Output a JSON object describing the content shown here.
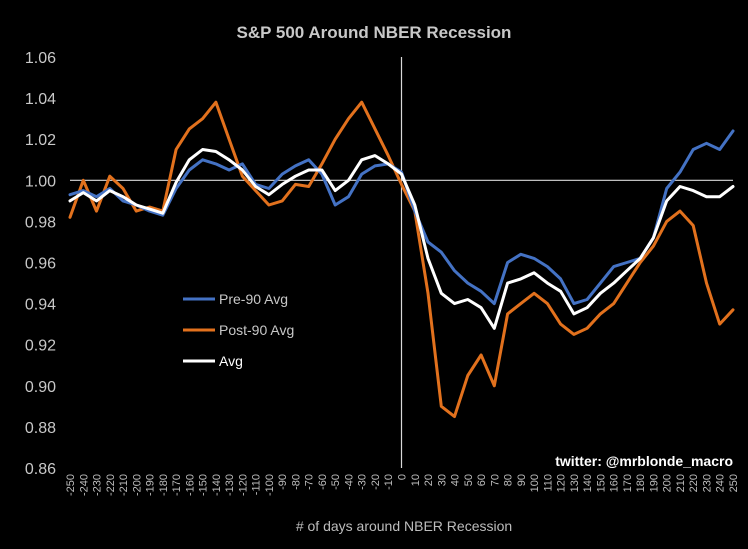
{
  "chart_data": {
    "type": "line",
    "title": "S&P 500 Around NBER Recession",
    "xlabel": "# of days around NBER Recession",
    "ylabel": "",
    "xlim": [
      -250,
      250
    ],
    "ylim": [
      0.86,
      1.06
    ],
    "yticks": [
      0.86,
      0.88,
      0.9,
      0.92,
      0.94,
      0.96,
      0.98,
      1.0,
      1.02,
      1.04,
      1.06
    ],
    "ytick_labels": [
      "0.86",
      "0.88",
      "0.90",
      "0.92",
      "0.94",
      "0.96",
      "0.98",
      "1.00",
      "1.02",
      "1.04",
      "1.06"
    ],
    "xtick_labels": [
      "-250",
      "-240",
      "-230",
      "-220",
      "-210",
      "-200",
      "-190",
      "-180",
      "-170",
      "-160",
      "-150",
      "-140",
      "-130",
      "-120",
      "-110",
      "-100",
      "-90",
      "-80",
      "-70",
      "-60",
      "-50",
      "-40",
      "-30",
      "-20",
      "-10",
      "0",
      "10",
      "20",
      "30",
      "40",
      "50",
      "60",
      "70",
      "80",
      "90",
      "100",
      "110",
      "120",
      "130",
      "140",
      "150",
      "160",
      "170",
      "180",
      "190",
      "200",
      "210",
      "220",
      "230",
      "240",
      "250"
    ],
    "reference_lines": {
      "horizontal_y": 1.0,
      "vertical_x": 0
    },
    "legend": [
      "Pre-90 Avg",
      "Post-90 Avg",
      "Avg"
    ],
    "legend_position": "middle-left",
    "annotation": "twitter: @mrblonde_macro",
    "series": [
      {
        "name": "Pre-90 Avg",
        "color": "#4472c4",
        "x": [
          -250,
          -240,
          -230,
          -220,
          -210,
          -200,
          -190,
          -180,
          -170,
          -160,
          -150,
          -140,
          -130,
          -120,
          -110,
          -100,
          -90,
          -80,
          -70,
          -60,
          -50,
          -40,
          -30,
          -20,
          -10,
          0,
          10,
          20,
          30,
          40,
          50,
          60,
          70,
          80,
          90,
          100,
          110,
          120,
          130,
          140,
          150,
          160,
          170,
          180,
          190,
          200,
          210,
          220,
          230,
          240,
          250
        ],
        "values": [
          0.993,
          0.995,
          0.992,
          0.996,
          0.99,
          0.988,
          0.985,
          0.983,
          0.996,
          1.005,
          1.01,
          1.008,
          1.005,
          1.008,
          0.998,
          0.996,
          1.003,
          1.007,
          1.01,
          1.003,
          0.988,
          0.992,
          1.003,
          1.007,
          1.008,
          1.004,
          0.985,
          0.97,
          0.965,
          0.956,
          0.95,
          0.946,
          0.94,
          0.96,
          0.964,
          0.962,
          0.958,
          0.952,
          0.94,
          0.942,
          0.95,
          0.958,
          0.96,
          0.962,
          0.972,
          0.996,
          1.004,
          1.015,
          1.018,
          1.015,
          1.024
        ]
      },
      {
        "name": "Post-90 Avg",
        "color": "#e2711d",
        "x": [
          -250,
          -240,
          -230,
          -220,
          -210,
          -200,
          -190,
          -180,
          -170,
          -160,
          -150,
          -140,
          -130,
          -120,
          -110,
          -100,
          -90,
          -80,
          -70,
          -60,
          -50,
          -40,
          -30,
          -20,
          -10,
          0,
          10,
          20,
          30,
          40,
          50,
          60,
          70,
          80,
          90,
          100,
          110,
          120,
          130,
          140,
          150,
          160,
          170,
          180,
          190,
          200,
          210,
          220,
          230,
          240,
          250
        ],
        "values": [
          0.982,
          1.0,
          0.985,
          1.002,
          0.996,
          0.985,
          0.987,
          0.985,
          1.015,
          1.025,
          1.03,
          1.038,
          1.02,
          1.002,
          0.995,
          0.988,
          0.99,
          0.998,
          0.997,
          1.008,
          1.02,
          1.03,
          1.038,
          1.025,
          1.012,
          0.998,
          0.985,
          0.945,
          0.89,
          0.885,
          0.905,
          0.915,
          0.9,
          0.935,
          0.94,
          0.945,
          0.94,
          0.93,
          0.925,
          0.928,
          0.935,
          0.94,
          0.95,
          0.96,
          0.968,
          0.98,
          0.985,
          0.978,
          0.95,
          0.93,
          0.937
        ]
      },
      {
        "name": "Avg",
        "color": "#ffffff",
        "x": [
          -250,
          -240,
          -230,
          -220,
          -210,
          -200,
          -190,
          -180,
          -170,
          -160,
          -150,
          -140,
          -130,
          -120,
          -110,
          -100,
          -90,
          -80,
          -70,
          -60,
          -50,
          -40,
          -30,
          -20,
          -10,
          0,
          10,
          20,
          30,
          40,
          50,
          60,
          70,
          80,
          90,
          100,
          110,
          120,
          130,
          140,
          150,
          160,
          170,
          180,
          190,
          200,
          210,
          220,
          230,
          240,
          250
        ],
        "values": [
          0.99,
          0.994,
          0.99,
          0.995,
          0.992,
          0.988,
          0.986,
          0.984,
          0.999,
          1.01,
          1.015,
          1.014,
          1.01,
          1.005,
          0.997,
          0.993,
          0.998,
          1.002,
          1.005,
          1.005,
          0.995,
          1.0,
          1.01,
          1.012,
          1.008,
          1.003,
          0.988,
          0.962,
          0.945,
          0.94,
          0.942,
          0.938,
          0.928,
          0.95,
          0.952,
          0.955,
          0.95,
          0.946,
          0.935,
          0.938,
          0.945,
          0.95,
          0.956,
          0.962,
          0.972,
          0.99,
          0.997,
          0.995,
          0.992,
          0.992,
          0.997
        ]
      }
    ]
  }
}
